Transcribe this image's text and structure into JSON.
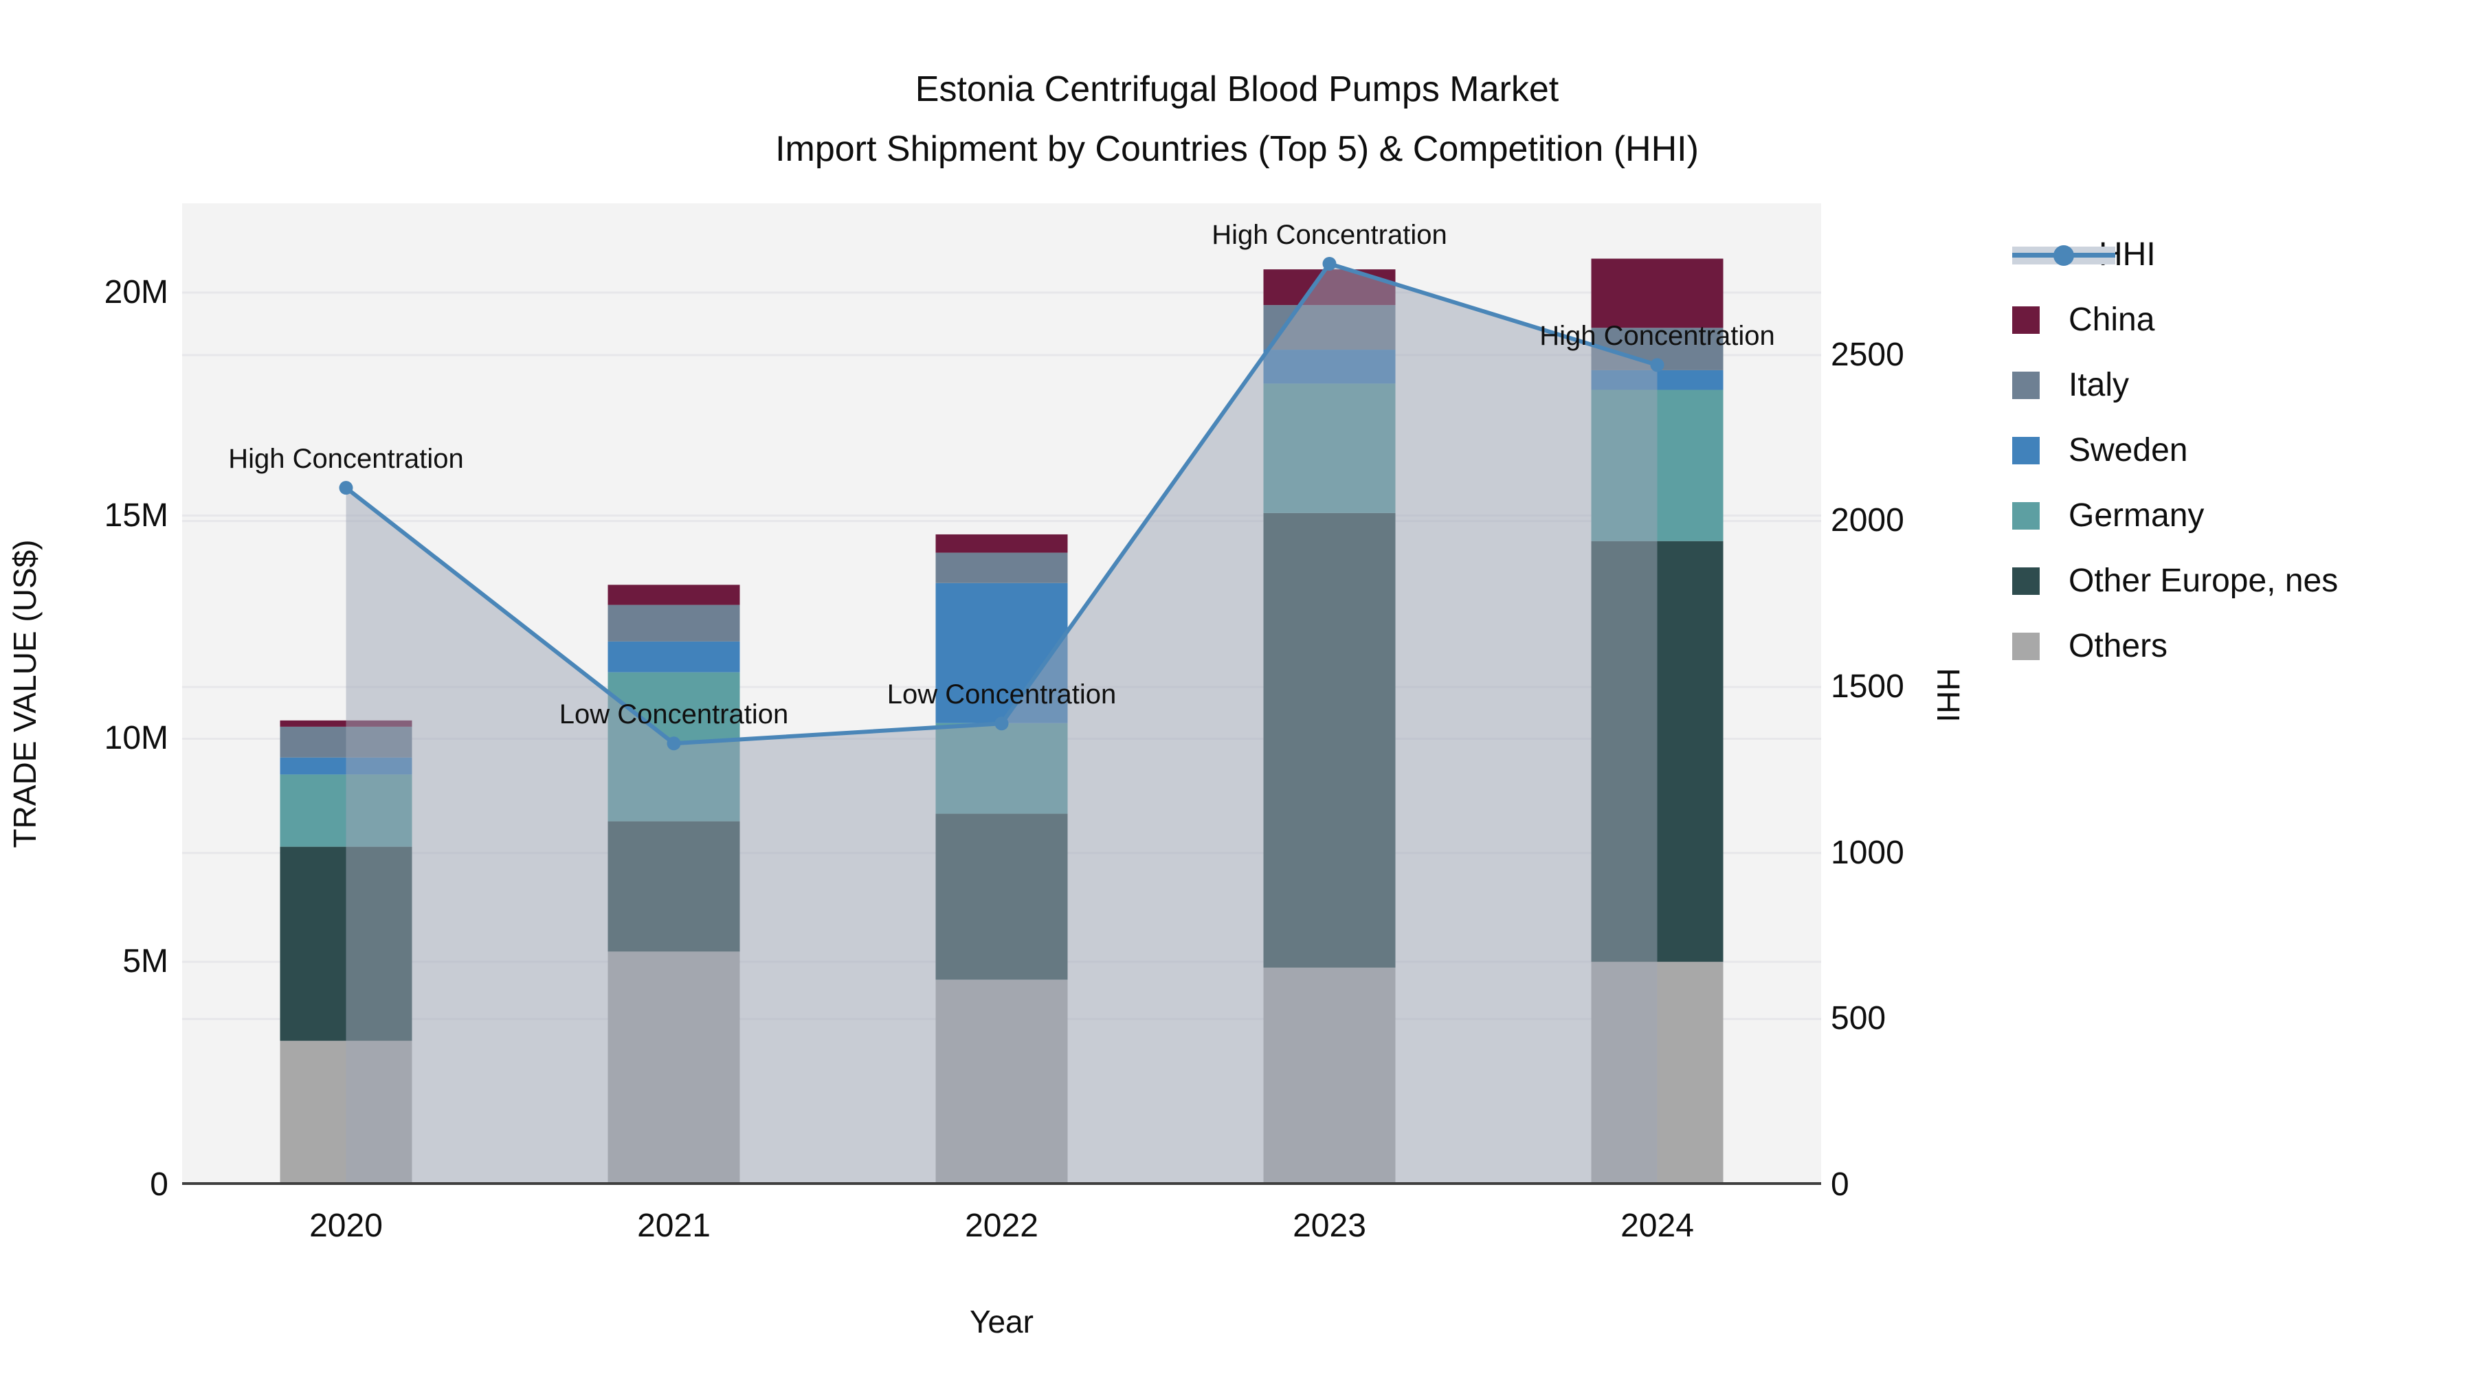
{
  "title": {
    "line1": "Estonia Centrifugal Blood Pumps Market",
    "line2": "Import Shipment by Countries (Top 5) & Competition (HHI)"
  },
  "axes": {
    "y_left_title": "TRADE VALUE (US$)",
    "y_right_title": "HHI",
    "x_title": "Year",
    "y_left_ticks": [
      {
        "label": "0",
        "value": 0
      },
      {
        "label": "5M",
        "value": 5000000
      },
      {
        "label": "10M",
        "value": 10000000
      },
      {
        "label": "15M",
        "value": 15000000
      },
      {
        "label": "20M",
        "value": 20000000
      }
    ],
    "y_right_ticks": [
      {
        "label": "0",
        "value": 0
      },
      {
        "label": "500",
        "value": 500
      },
      {
        "label": "1000",
        "value": 1000
      },
      {
        "label": "1500",
        "value": 1500
      },
      {
        "label": "2000",
        "value": 2000
      },
      {
        "label": "2500",
        "value": 2500
      }
    ]
  },
  "chart_data": {
    "type": "bar+line",
    "categories": [
      "2020",
      "2021",
      "2022",
      "2023",
      "2024"
    ],
    "bar_unit": "US$",
    "stack_order_bottom_to_top": [
      "Others",
      "Other Europe, nes",
      "Germany",
      "Sweden",
      "Italy",
      "China"
    ],
    "series": [
      {
        "name": "China",
        "color": "#6d1a3e",
        "values": [
          140000,
          450000,
          410000,
          800000,
          1550000
        ]
      },
      {
        "name": "Italy",
        "color": "#6e8093",
        "values": [
          690000,
          820000,
          680000,
          1000000,
          950000
        ]
      },
      {
        "name": "Sweden",
        "color": "#4182bb",
        "values": [
          380000,
          690000,
          3140000,
          760000,
          440000
        ]
      },
      {
        "name": "Germany",
        "color": "#5d9fa2",
        "values": [
          1620000,
          3340000,
          2030000,
          2900000,
          3390000
        ]
      },
      {
        "name": "Other Europe, nes",
        "color": "#2e4c4e",
        "values": [
          4350000,
          2920000,
          3720000,
          10190000,
          9430000
        ]
      },
      {
        "name": "Others",
        "color": "#a8a8a8",
        "values": [
          3230000,
          5230000,
          4600000,
          4870000,
          5000000
        ]
      }
    ],
    "hhi": {
      "name": "HHI",
      "line_color": "#4a86b8",
      "area_color": "rgba(158,166,182,0.5)",
      "values": [
        2100,
        1330,
        1390,
        2775,
        2470
      ]
    },
    "annotations": [
      {
        "category": "2020",
        "text": "High Concentration"
      },
      {
        "category": "2021",
        "text": "Low Concentration"
      },
      {
        "category": "2022",
        "text": "Low Concentration"
      },
      {
        "category": "2023",
        "text": "High Concentration"
      },
      {
        "category": "2024",
        "text": "High Concentration"
      }
    ],
    "ylim_left": [
      0,
      22000000
    ],
    "ylim_right": [
      0,
      2957
    ],
    "gridlines_left": [
      5000000,
      10000000,
      15000000,
      20000000
    ],
    "gridlines_right": [
      500,
      1000,
      1500,
      2000,
      2500
    ],
    "grid_color": "#e7e7ea",
    "baseline_color": "#3f3f3f",
    "plot_bg": "#f3f3f3",
    "legend_order": [
      "HHI",
      "China",
      "Italy",
      "Sweden",
      "Germany",
      "Other Europe, nes",
      "Others"
    ]
  }
}
